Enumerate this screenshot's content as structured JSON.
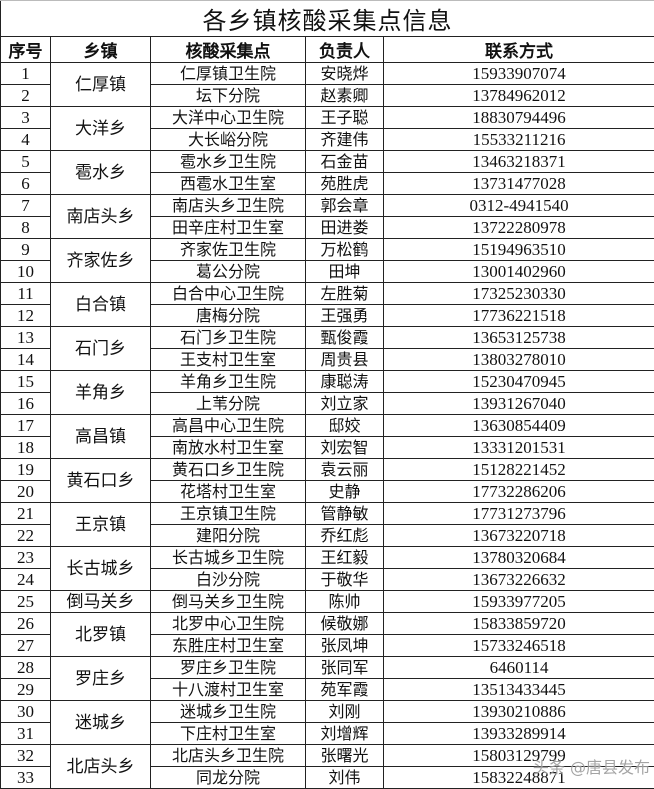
{
  "title": "各乡镇核酸采集点信息",
  "headers": [
    "序号",
    "乡镇",
    "核酸采集点",
    "负责人",
    "联系方式"
  ],
  "groups": [
    {
      "town": "仁厚镇",
      "rows": [
        [
          "1",
          "仁厚镇卫生院",
          "安晓烨",
          "15933907074"
        ],
        [
          "2",
          "坛下分院",
          "赵素卿",
          "13784962012"
        ]
      ]
    },
    {
      "town": "大洋乡",
      "rows": [
        [
          "3",
          "大洋中心卫生院",
          "王子聪",
          "18830794496"
        ],
        [
          "4",
          "大长峪分院",
          "齐建伟",
          "15533211216"
        ]
      ]
    },
    {
      "town": "雹水乡",
      "rows": [
        [
          "5",
          "雹水乡卫生院",
          "石金苗",
          "13463218371"
        ],
        [
          "6",
          "西雹水卫生室",
          "苑胜虎",
          "13731477028"
        ]
      ]
    },
    {
      "town": "南店头乡",
      "rows": [
        [
          "7",
          "南店头乡卫生院",
          "郭会章",
          "0312-4941540"
        ],
        [
          "8",
          "田辛庄村卫生室",
          "田进娄",
          "13722280978"
        ]
      ]
    },
    {
      "town": "齐家佐乡",
      "rows": [
        [
          "9",
          "齐家佐卫生院",
          "万松鹤",
          "15194963510"
        ],
        [
          "10",
          "葛公分院",
          "田坤",
          "13001402960"
        ]
      ]
    },
    {
      "town": "白合镇",
      "rows": [
        [
          "11",
          "白合中心卫生院",
          "左胜菊",
          "17325230330"
        ],
        [
          "12",
          "唐梅分院",
          "王强勇",
          "17736221518"
        ]
      ]
    },
    {
      "town": "石门乡",
      "rows": [
        [
          "13",
          "石门乡卫生院",
          "甄俊霞",
          "13653125738"
        ],
        [
          "14",
          "王支村卫生室",
          "周贵县",
          "13803278010"
        ]
      ]
    },
    {
      "town": "羊角乡",
      "rows": [
        [
          "15",
          "羊角乡卫生院",
          "康聪涛",
          "15230470945"
        ],
        [
          "16",
          "上苇分院",
          "刘立家",
          "13931267040"
        ]
      ]
    },
    {
      "town": "高昌镇",
      "rows": [
        [
          "17",
          "高昌中心卫生院",
          "邸姣",
          "13630854409"
        ],
        [
          "18",
          "南放水村卫生室",
          "刘宏智",
          "13331201531"
        ]
      ]
    },
    {
      "town": "黄石口乡",
      "rows": [
        [
          "19",
          "黄石口乡卫生院",
          "袁云丽",
          "15128221452"
        ],
        [
          "20",
          "花塔村卫生室",
          "史静",
          "17732286206"
        ]
      ]
    },
    {
      "town": "王京镇",
      "rows": [
        [
          "21",
          "王京镇卫生院",
          "管静敏",
          "17731273796"
        ],
        [
          "22",
          "建阳分院",
          "乔红彪",
          "13673220718"
        ]
      ]
    },
    {
      "town": "长古城乡",
      "rows": [
        [
          "23",
          "长古城乡卫生院",
          "王红毅",
          "13780320684"
        ],
        [
          "24",
          "白沙分院",
          "于敬华",
          "13673226632"
        ]
      ]
    },
    {
      "town": "倒马关乡",
      "rows": [
        [
          "25",
          "倒马关乡卫生院",
          "陈帅",
          "15933977205"
        ]
      ]
    },
    {
      "town": "北罗镇",
      "rows": [
        [
          "26",
          "北罗中心卫生院",
          "候敬娜",
          "15833859720"
        ],
        [
          "27",
          "东胜庄村卫生室",
          "张凤坤",
          "15733246518"
        ]
      ]
    },
    {
      "town": "罗庄乡",
      "rows": [
        [
          "28",
          "罗庄乡卫生院",
          "张同军",
          "6460114"
        ],
        [
          "29",
          "十八渡村卫生室",
          "苑军霞",
          "13513433445"
        ]
      ]
    },
    {
      "town": "迷城乡",
      "rows": [
        [
          "30",
          "迷城乡卫生院",
          "刘刚",
          "13930210886"
        ],
        [
          "31",
          "下庄村卫生室",
          "刘增辉",
          "13933289914"
        ]
      ]
    },
    {
      "town": "北店头乡",
      "rows": [
        [
          "32",
          "北店头乡卫生院",
          "张曙光",
          "15803129799"
        ],
        [
          "33",
          "同龙分院",
          "刘伟",
          "15832248871"
        ]
      ]
    }
  ],
  "watermark": "头条 @唐县发布"
}
